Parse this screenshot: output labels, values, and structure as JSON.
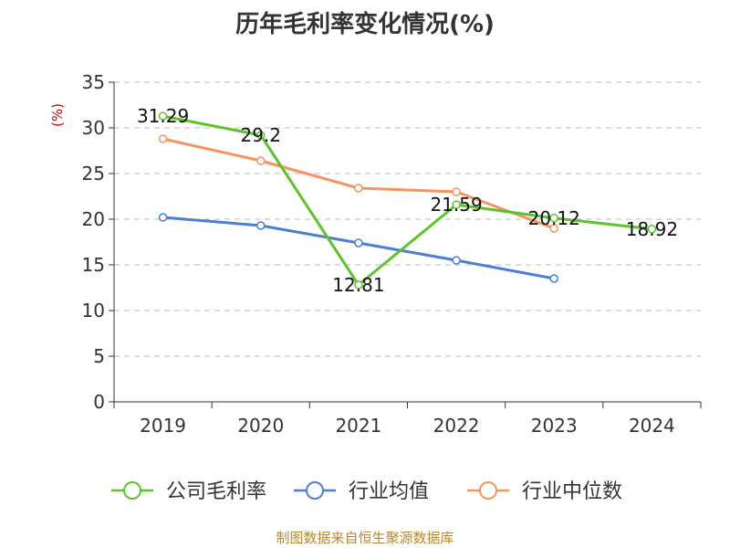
{
  "chart_data": {
    "type": "line",
    "title": "历年毛利率变化情况(%)",
    "ylabel": "(%)",
    "categories": [
      "2019",
      "2020",
      "2021",
      "2022",
      "2023",
      "2024"
    ],
    "ylim": [
      0,
      35
    ],
    "yticks": [
      0,
      5,
      10,
      15,
      20,
      25,
      30,
      35
    ],
    "grid": true,
    "legend_position": "bottom",
    "series": [
      {
        "name": "公司毛利率",
        "color": "#5dc22b",
        "values": [
          31.29,
          29.2,
          12.81,
          21.59,
          20.12,
          18.92
        ],
        "labels": [
          "31.29",
          "29.2",
          "12.81",
          "21.59",
          "20.12",
          "18.92"
        ]
      },
      {
        "name": "行业均值",
        "color": "#4a7fd4",
        "values": [
          20.2,
          19.3,
          17.4,
          15.5,
          13.5,
          null
        ]
      },
      {
        "name": "行业中位数",
        "color": "#f39461",
        "values": [
          28.8,
          26.4,
          23.4,
          23.0,
          19.0,
          null
        ]
      }
    ]
  },
  "footer": {
    "source": "制图数据来自恒生聚源数据库"
  }
}
